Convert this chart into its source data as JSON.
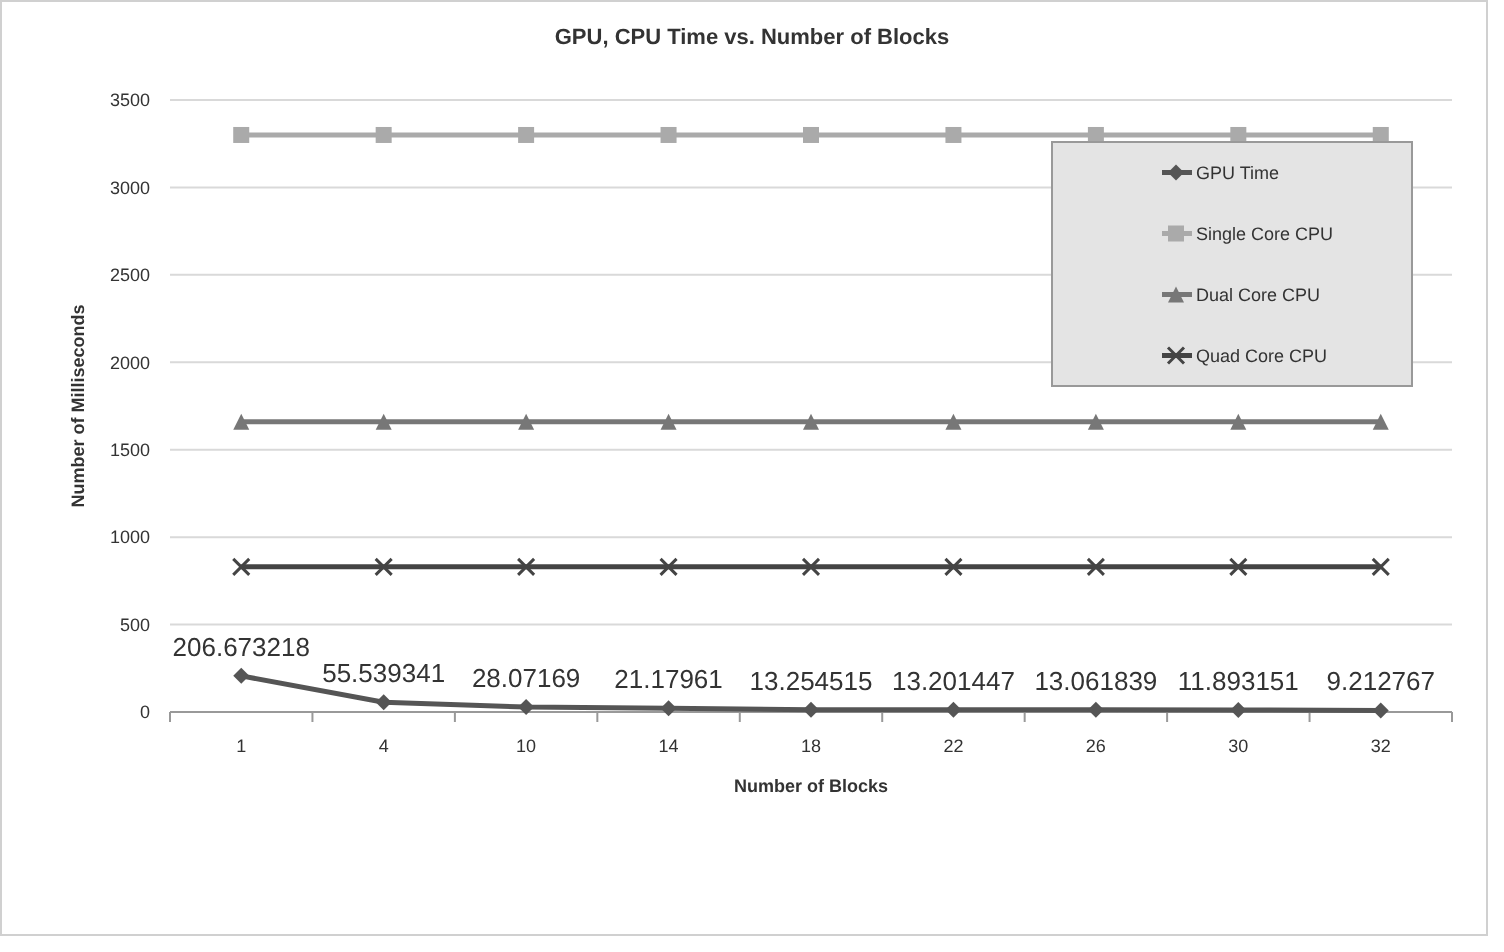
{
  "chart_data": {
    "type": "line",
    "title": "GPU, CPU Time  vs. Number of Blocks",
    "xlabel": "Number of Blocks",
    "ylabel": "Number of Milliseconds",
    "categories": [
      "1",
      "4",
      "10",
      "14",
      "18",
      "22",
      "26",
      "30",
      "32"
    ],
    "series": [
      {
        "name": "GPU Time",
        "color": "#555555",
        "marker": "diamond",
        "values": [
          206.673218,
          55.539341,
          28.07169,
          21.17961,
          13.254515,
          13.201447,
          13.061839,
          11.893151,
          9.212767
        ],
        "value_labels": [
          "206.673218",
          "55.539341",
          "28.07169",
          "21.17961",
          "13.254515",
          "13.201447",
          "13.061839",
          "11.893151",
          "9.212767"
        ]
      },
      {
        "name": "Single Core CPU",
        "color": "#aaaaaa",
        "marker": "square",
        "values": [
          3300,
          3300,
          3300,
          3300,
          3300,
          3300,
          3300,
          3300,
          3300
        ]
      },
      {
        "name": "Dual Core CPU",
        "color": "#777777",
        "marker": "triangle",
        "values": [
          1660,
          1660,
          1660,
          1660,
          1660,
          1660,
          1660,
          1660,
          1660
        ]
      },
      {
        "name": "Quad Core CPU",
        "color": "#444444",
        "marker": "cross",
        "values": [
          830,
          830,
          830,
          830,
          830,
          830,
          830,
          830,
          830
        ]
      }
    ],
    "ylim": [
      0,
      3500
    ],
    "yticks": [
      0,
      500,
      1000,
      1500,
      2000,
      2500,
      3000,
      3500
    ],
    "grid": "y",
    "legend": "top right"
  }
}
